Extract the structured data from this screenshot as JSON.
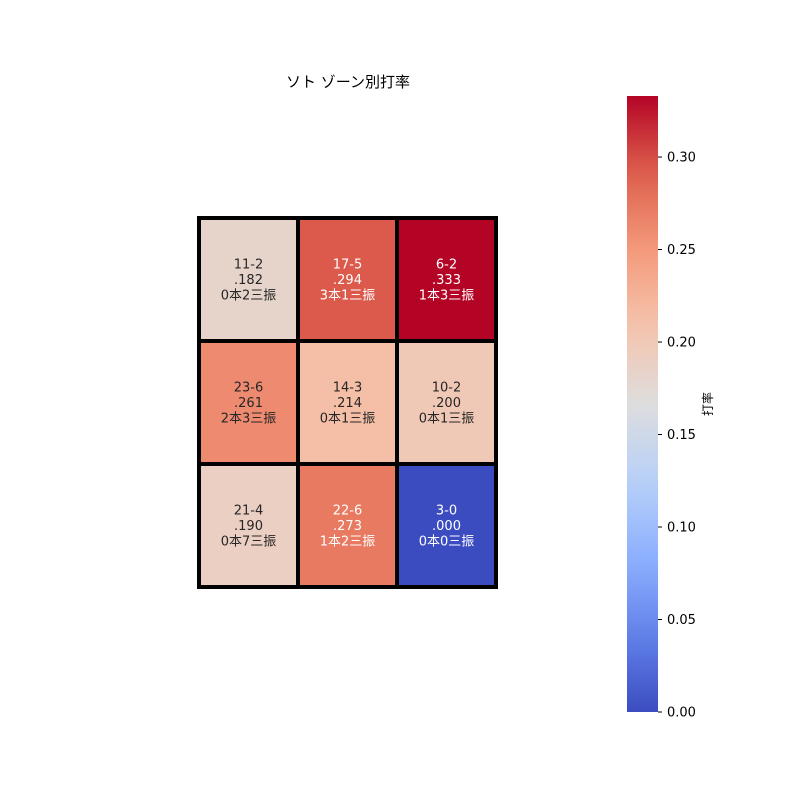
{
  "chart_data": {
    "type": "heatmap",
    "title": "ソト ゾーン別打率",
    "rows": 3,
    "cols": 3,
    "cells": [
      [
        {
          "record": "11-2",
          "avg": ".182",
          "detail": "0本2三振",
          "value": 0.182
        },
        {
          "record": "17-5",
          "avg": ".294",
          "detail": "3本1三振",
          "value": 0.294
        },
        {
          "record": "6-2",
          "avg": ".333",
          "detail": "1本3三振",
          "value": 0.333
        }
      ],
      [
        {
          "record": "23-6",
          "avg": ".261",
          "detail": "2本3三振",
          "value": 0.261
        },
        {
          "record": "14-3",
          "avg": ".214",
          "detail": "0本1三振",
          "value": 0.214
        },
        {
          "record": "10-2",
          "avg": ".200",
          "detail": "0本1三振",
          "value": 0.2
        }
      ],
      [
        {
          "record": "21-4",
          "avg": ".190",
          "detail": "0本7三振",
          "value": 0.19
        },
        {
          "record": "22-6",
          "avg": ".273",
          "detail": "1本2三振",
          "value": 0.273
        },
        {
          "record": "3-0",
          "avg": ".000",
          "detail": "0本0三振",
          "value": 0.0
        }
      ]
    ],
    "colorbar": {
      "label": "打率",
      "colormap": "coolwarm",
      "vmin": 0.0,
      "vmax": 0.333,
      "ticks": [
        "0.00",
        "0.05",
        "0.10",
        "0.15",
        "0.20",
        "0.25",
        "0.30"
      ],
      "tick_values": [
        0.0,
        0.05,
        0.1,
        0.15,
        0.2,
        0.25,
        0.3
      ]
    },
    "border_color": "#000000",
    "text_color_light": "#ffffff",
    "text_color_dark": "#262626"
  }
}
